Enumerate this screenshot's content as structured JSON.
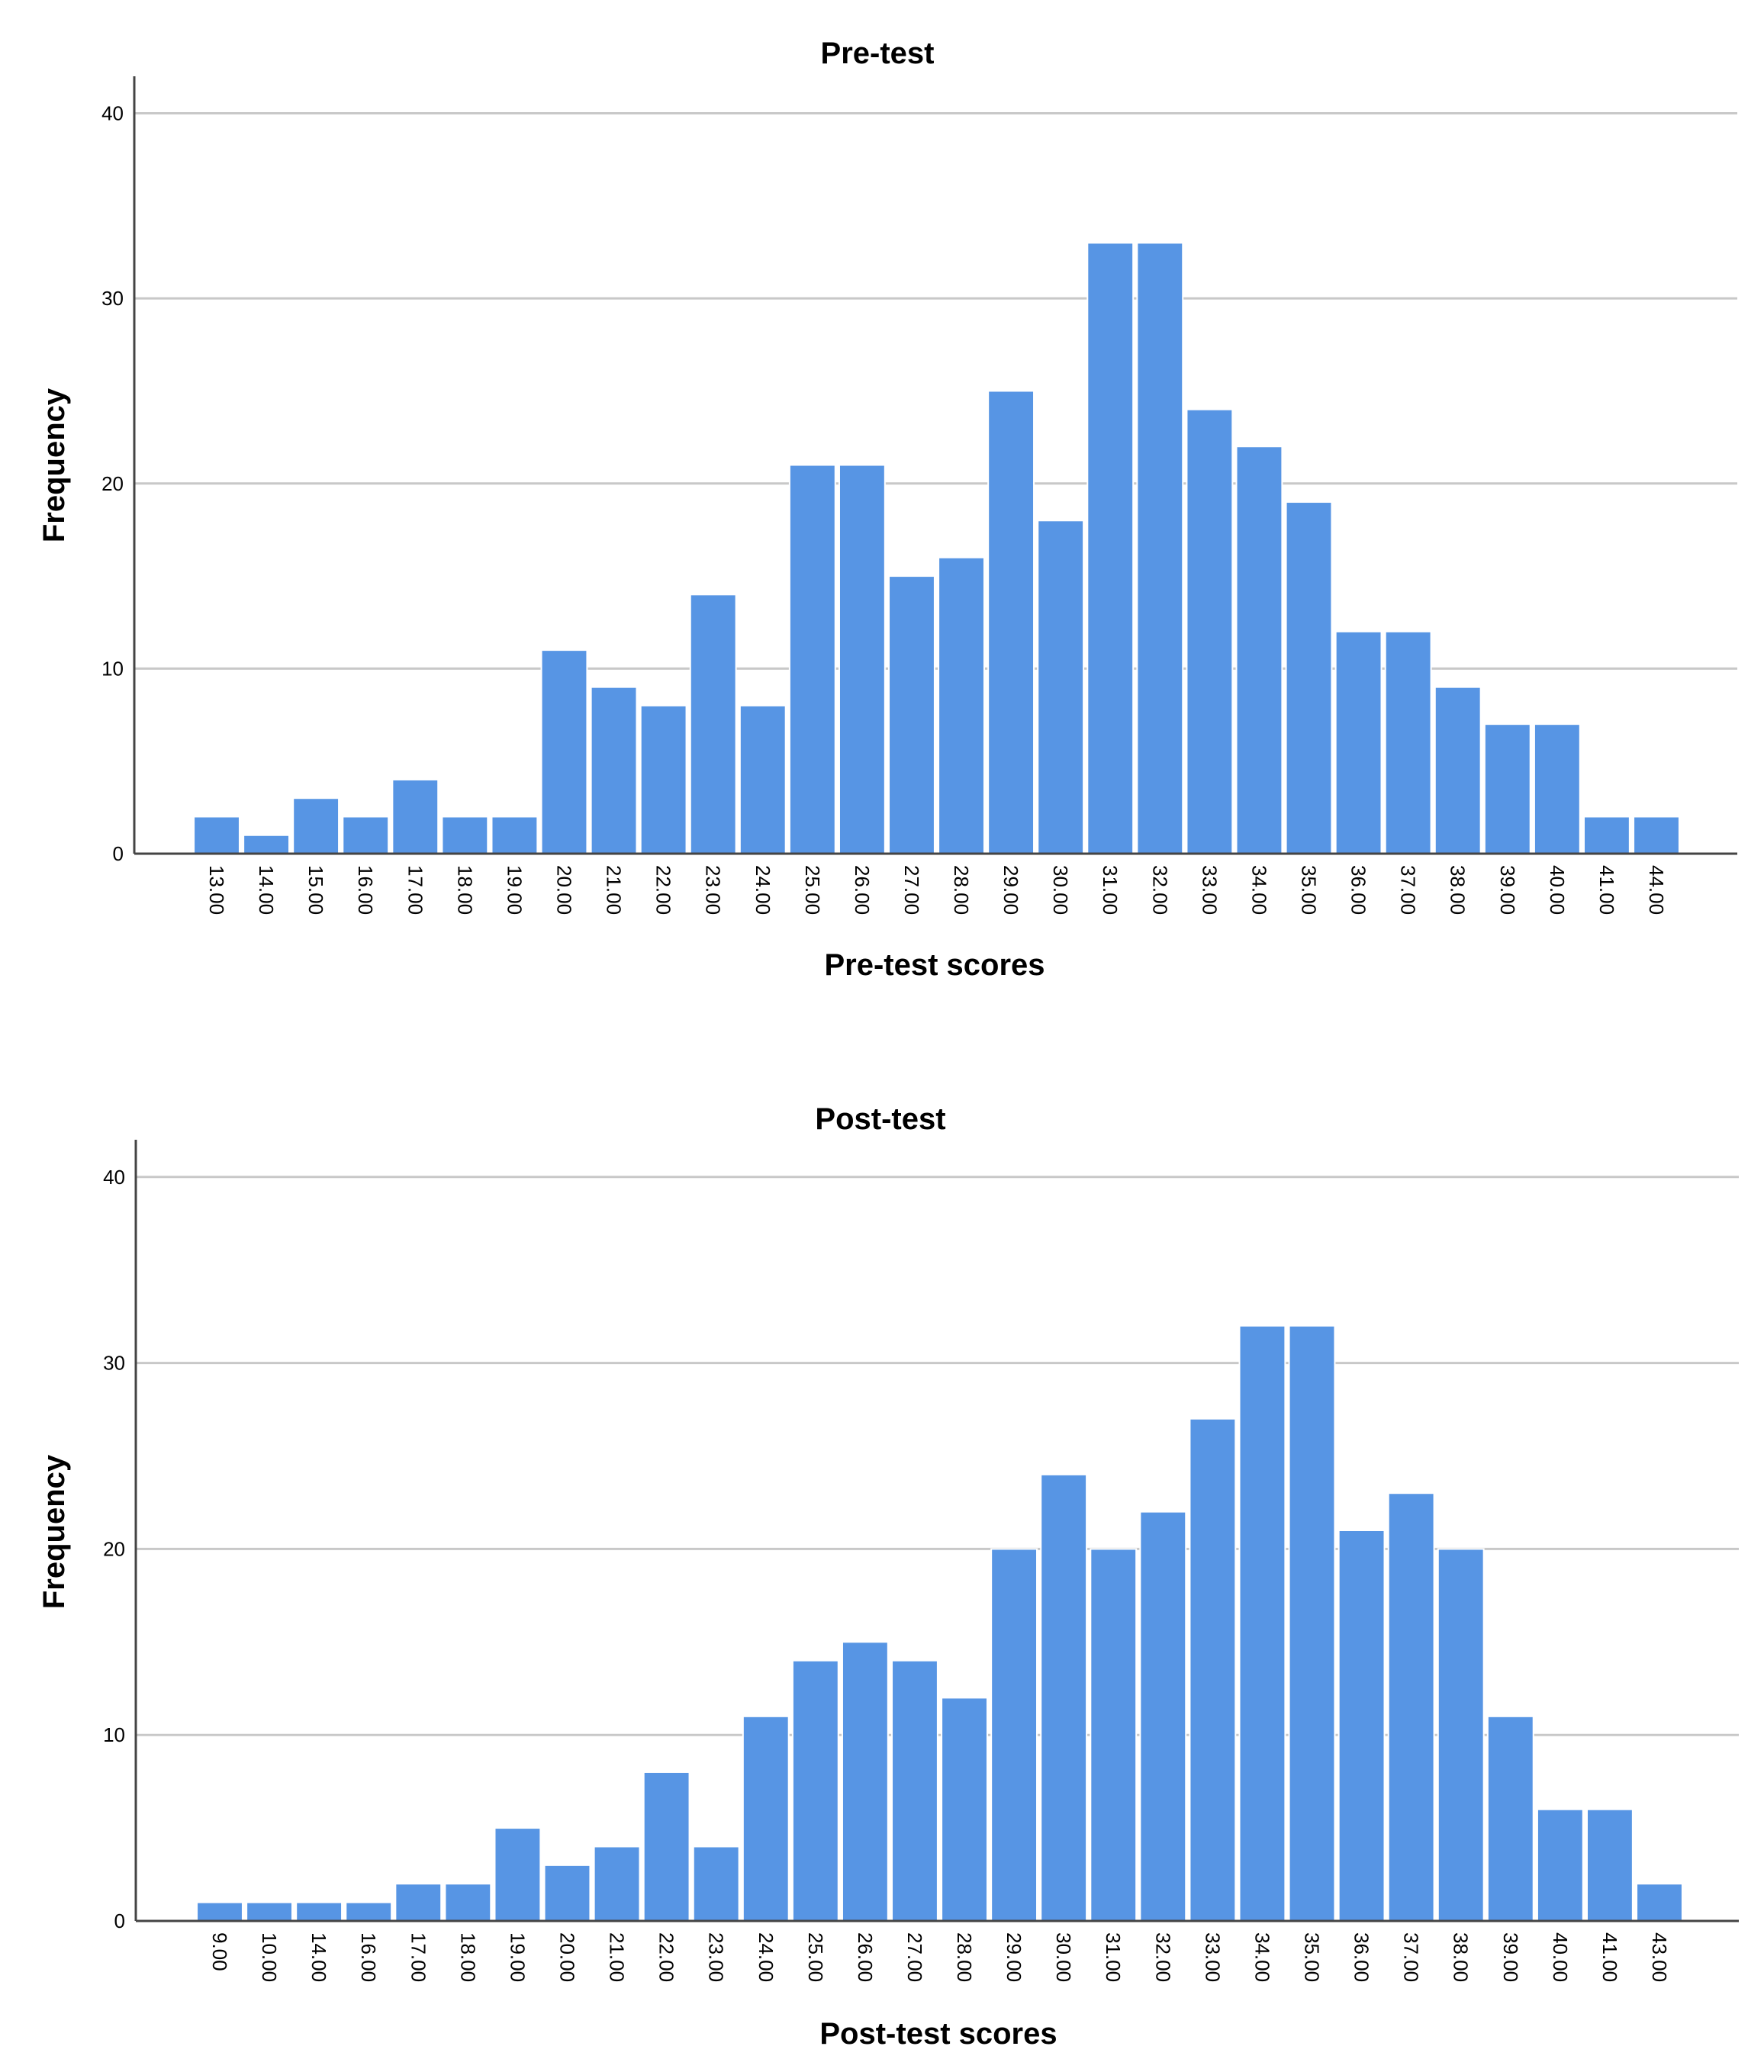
{
  "bar_color": "#5795e4",
  "chart_data": [
    {
      "type": "bar",
      "title": "Pre-test",
      "xlabel": "Pre-test scores",
      "ylabel": "Frequency",
      "ylim": [
        0,
        42
      ],
      "yticks": [
        "0",
        "10",
        "20",
        "30",
        "40"
      ],
      "categories": [
        "13.00",
        "14.00",
        "15.00",
        "16.00",
        "17.00",
        "18.00",
        "19.00",
        "20.00",
        "21.00",
        "22.00",
        "23.00",
        "24.00",
        "25.00",
        "26.00",
        "27.00",
        "28.00",
        "29.00",
        "30.00",
        "31.00",
        "32.00",
        "33.00",
        "34.00",
        "35.00",
        "36.00",
        "37.00",
        "38.00",
        "39.00",
        "40.00",
        "41.00",
        "44.00"
      ],
      "values": [
        2,
        1,
        3,
        2,
        4,
        2,
        2,
        11,
        9,
        8,
        14,
        8,
        21,
        21,
        15,
        16,
        25,
        18,
        33,
        33,
        24,
        22,
        19,
        12,
        12,
        9,
        7,
        7,
        2,
        2
      ]
    },
    {
      "type": "bar",
      "title": "Post-test",
      "xlabel": "Post-test scores",
      "ylabel": "Frequency",
      "ylim": [
        0,
        42
      ],
      "yticks": [
        "0",
        "10",
        "20",
        "30",
        "40"
      ],
      "categories": [
        "9.00",
        "10.00",
        "14.00",
        "16.00",
        "17.00",
        "18.00",
        "19.00",
        "20.00",
        "21.00",
        "22.00",
        "23.00",
        "24.00",
        "25.00",
        "26.00",
        "27.00",
        "28.00",
        "29.00",
        "30.00",
        "31.00",
        "32.00",
        "33.00",
        "34.00",
        "35.00",
        "36.00",
        "37.00",
        "38.00",
        "39.00",
        "40.00",
        "41.00",
        "43.00"
      ],
      "values": [
        1,
        1,
        1,
        1,
        2,
        2,
        5,
        3,
        4,
        8,
        4,
        11,
        14,
        15,
        14,
        12,
        20,
        24,
        20,
        22,
        27,
        32,
        32,
        21,
        23,
        20,
        11,
        6,
        6,
        2
      ]
    }
  ]
}
